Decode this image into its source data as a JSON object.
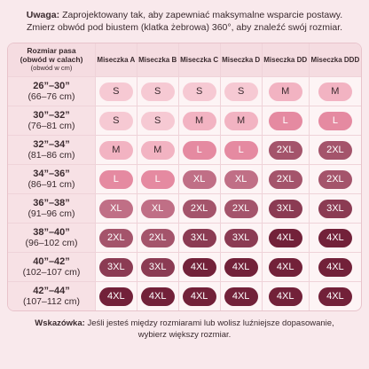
{
  "note": {
    "label": "Uwaga:",
    "text": "Zaprojektowany tak, aby zapewniać maksymalne wsparcie postawy. Zmierz obwód pod biustem (klatka żebrowa) 360°, aby znaleźć swój rozmiar."
  },
  "table": {
    "header_first": [
      "Rozmiar pasa",
      "(obwód w calach)",
      "(obwód w cm)"
    ],
    "columns": [
      "Miseczka A",
      "Miseczka B",
      "Miseczka C",
      "Miseczka D",
      "Miseczka DD",
      "Miseczka DDD"
    ],
    "rows": [
      {
        "inches": "26”–30”",
        "cm": "(66–76 cm)",
        "sizes": [
          "S",
          "S",
          "S",
          "S",
          "M",
          "M"
        ]
      },
      {
        "inches": "30”–32”",
        "cm": "(76–81 cm)",
        "sizes": [
          "S",
          "S",
          "M",
          "M",
          "L",
          "L"
        ]
      },
      {
        "inches": "32”–34”",
        "cm": "(81–86 cm)",
        "sizes": [
          "M",
          "M",
          "L",
          "L",
          "2XL",
          "2XL"
        ]
      },
      {
        "inches": "34”–36”",
        "cm": "(86–91 cm)",
        "sizes": [
          "L",
          "L",
          "XL",
          "XL",
          "2XL",
          "2XL"
        ]
      },
      {
        "inches": "36”–38”",
        "cm": "(91–96 cm)",
        "sizes": [
          "XL",
          "XL",
          "2XL",
          "2XL",
          "3XL",
          "3XL"
        ]
      },
      {
        "inches": "38”–40”",
        "cm": "(96–102 cm)",
        "sizes": [
          "2XL",
          "2XL",
          "3XL",
          "3XL",
          "4XL",
          "4XL"
        ]
      },
      {
        "inches": "40”–42”",
        "cm": "(102–107 cm)",
        "sizes": [
          "3XL",
          "3XL",
          "4XL",
          "4XL",
          "4XL",
          "4XL"
        ]
      },
      {
        "inches": "42”–44”",
        "cm": "(107–112 cm)",
        "sizes": [
          "4XL",
          "4XL",
          "4XL",
          "4XL",
          "4XL",
          "4XL"
        ]
      }
    ]
  },
  "badge_colors": {
    "S": "#f6c9d3",
    "M": "#f2b3c2",
    "L": "#e58aa1",
    "XL": "#c06f86",
    "2XL": "#a4546b",
    "3XL": "#8b3b53",
    "4XL": "#722139"
  },
  "light_text_sizes": [
    "L",
    "XL",
    "2XL",
    "3XL",
    "4XL"
  ],
  "tip": {
    "label": "Wskazówka:",
    "text": "Jeśli jesteś między rozmiarami lub wolisz luźniejsze dopasowanie, wybierz większy rozmiar."
  }
}
